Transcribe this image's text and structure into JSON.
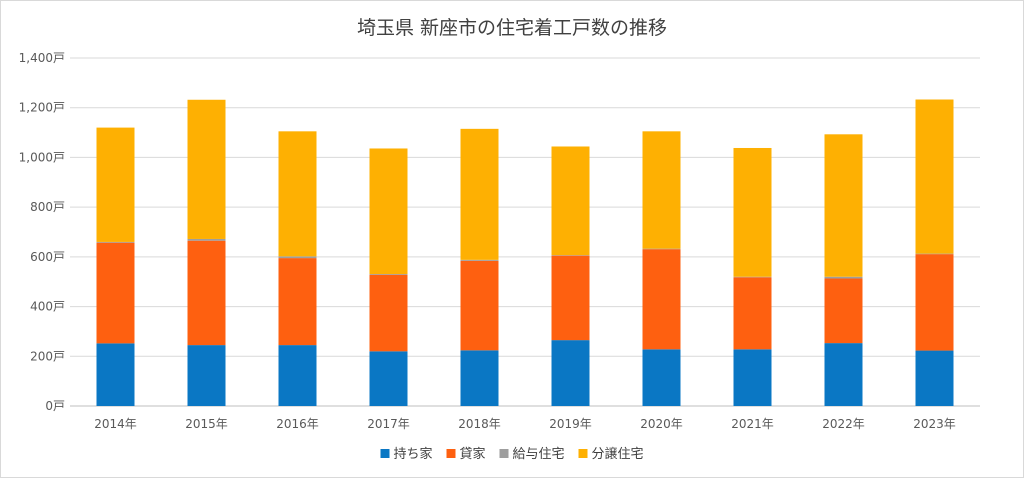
{
  "chart_data": {
    "type": "bar",
    "stacked": true,
    "title": "埼玉県 新座市の住宅着工戸数の推移",
    "categories": [
      "2014年",
      "2015年",
      "2016年",
      "2017年",
      "2018年",
      "2019年",
      "2020年",
      "2021年",
      "2022年",
      "2023年"
    ],
    "y_tick_labels": [
      "0戸",
      "200戸",
      "400戸",
      "600戸",
      "800戸",
      "1,000戸",
      "1,200戸",
      "1,400戸"
    ],
    "ylim": [
      0,
      1400
    ],
    "grid": true,
    "legend_position": "bottom",
    "series": [
      {
        "name": "持ち家",
        "color": "#0a77c4",
        "values": [
          252,
          245,
          245,
          220,
          224,
          265,
          228,
          228,
          253,
          223
        ]
      },
      {
        "name": "貸家",
        "color": "#fe6010",
        "values": [
          405,
          420,
          350,
          308,
          360,
          340,
          403,
          290,
          260,
          388
        ]
      },
      {
        "name": "給与住宅",
        "color": "#9e9e9e",
        "values": [
          3,
          7,
          7,
          3,
          4,
          2,
          2,
          2,
          7,
          2
        ]
      },
      {
        "name": "分譲住宅",
        "color": "#feb002",
        "values": [
          460,
          560,
          503,
          505,
          527,
          437,
          472,
          518,
          573,
          620
        ]
      }
    ]
  }
}
